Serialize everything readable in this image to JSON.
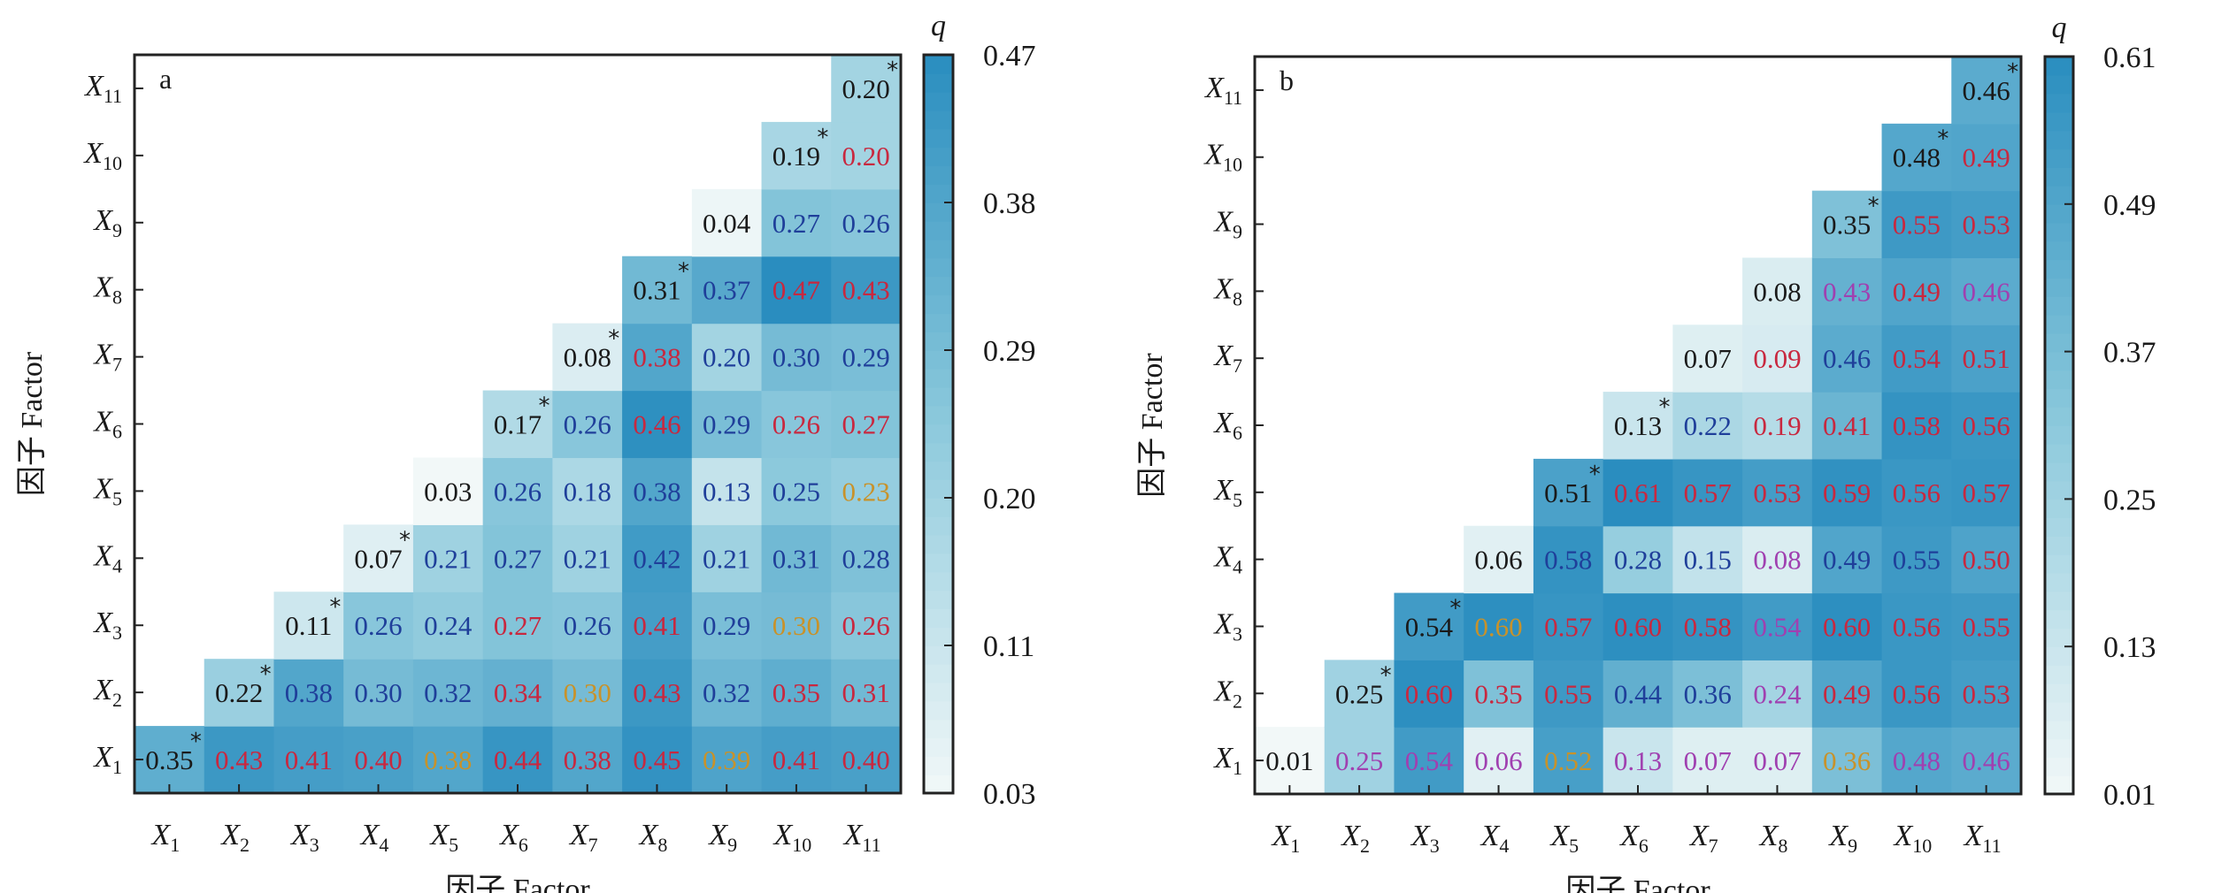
{
  "chart_data": [
    {
      "type": "heatmap",
      "panel_label": "a",
      "title": "",
      "xlabel": "因子 Factor",
      "ylabel": "因子 Factor",
      "colorbar_label": "q",
      "colorbar_ticks": [
        "0.47",
        "0.38",
        "0.29",
        "0.20",
        "0.11",
        "0.03"
      ],
      "colorbar_range": [
        0.03,
        0.47
      ],
      "x_categories": [
        "X1",
        "X2",
        "X3",
        "X4",
        "X5",
        "X6",
        "X7",
        "X8",
        "X9",
        "X10",
        "X11"
      ],
      "y_categories": [
        "X1",
        "X2",
        "X3",
        "X4",
        "X5",
        "X6",
        "X7",
        "X8",
        "X9",
        "X10",
        "X11"
      ],
      "layout": "upper-triangle: row Xi lists cells for columns Xi..X11",
      "rows": [
        {
          "row": "X1",
          "values": [
            0.35,
            0.43,
            0.41,
            0.4,
            0.38,
            0.44,
            0.38,
            0.45,
            0.39,
            0.41,
            0.4
          ],
          "labels": [
            "0.35",
            "0.43",
            "0.41",
            "0.40",
            "0.38",
            "0.44",
            "0.38",
            "0.45",
            "0.39",
            "0.41",
            "0.40"
          ],
          "marks": [
            "k",
            "r",
            "r",
            "r",
            "o",
            "r",
            "r",
            "r",
            "o",
            "r",
            "r"
          ],
          "star": true
        },
        {
          "row": "X2",
          "values": [
            0.22,
            0.38,
            0.3,
            0.32,
            0.34,
            0.3,
            0.43,
            0.32,
            0.35,
            0.31
          ],
          "labels": [
            "0.22",
            "0.38",
            "0.30",
            "0.32",
            "0.34",
            "0.30",
            "0.43",
            "0.32",
            "0.35",
            "0.31"
          ],
          "marks": [
            "k",
            "b",
            "b",
            "b",
            "r",
            "o",
            "r",
            "b",
            "r",
            "r"
          ],
          "star": true
        },
        {
          "row": "X3",
          "values": [
            0.11,
            0.26,
            0.24,
            0.27,
            0.26,
            0.41,
            0.29,
            0.3,
            0.26
          ],
          "labels": [
            "0.11",
            "0.26",
            "0.24",
            "0.27",
            "0.26",
            "0.41",
            "0.29",
            "0.30",
            "0.26"
          ],
          "marks": [
            "k",
            "b",
            "b",
            "r",
            "b",
            "r",
            "b",
            "o",
            "r"
          ],
          "star": true
        },
        {
          "row": "X4",
          "values": [
            0.07,
            0.21,
            0.27,
            0.21,
            0.42,
            0.21,
            0.31,
            0.28
          ],
          "labels": [
            "0.07",
            "0.21",
            "0.27",
            "0.21",
            "0.42",
            "0.21",
            "0.31",
            "0.28"
          ],
          "marks": [
            "k",
            "b",
            "b",
            "b",
            "b",
            "b",
            "b",
            "b"
          ],
          "star": true
        },
        {
          "row": "X5",
          "values": [
            0.03,
            0.26,
            0.18,
            0.38,
            0.13,
            0.25,
            0.23
          ],
          "labels": [
            "0.03",
            "0.26",
            "0.18",
            "0.38",
            "0.13",
            "0.25",
            "0.23"
          ],
          "marks": [
            "k",
            "b",
            "b",
            "b",
            "b",
            "b",
            "o"
          ],
          "star": false
        },
        {
          "row": "X6",
          "values": [
            0.17,
            0.26,
            0.46,
            0.29,
            0.26,
            0.27
          ],
          "labels": [
            "0.17",
            "0.26",
            "0.46",
            "0.29",
            "0.26",
            "0.27"
          ],
          "marks": [
            "k",
            "b",
            "r",
            "b",
            "r",
            "r"
          ],
          "star": true
        },
        {
          "row": "X7",
          "values": [
            0.08,
            0.38,
            0.2,
            0.3,
            0.29
          ],
          "labels": [
            "0.08",
            "0.38",
            "0.20",
            "0.30",
            "0.29"
          ],
          "marks": [
            "k",
            "r",
            "b",
            "b",
            "b"
          ],
          "star": true
        },
        {
          "row": "X8",
          "values": [
            0.31,
            0.37,
            0.47,
            0.43
          ],
          "labels": [
            "0.31",
            "0.37",
            "0.47",
            "0.43"
          ],
          "marks": [
            "k",
            "b",
            "r",
            "r"
          ],
          "star": true
        },
        {
          "row": "X9",
          "values": [
            0.04,
            0.27,
            0.26
          ],
          "labels": [
            "0.04",
            "0.27",
            "0.26"
          ],
          "marks": [
            "k",
            "b",
            "b"
          ],
          "star": false
        },
        {
          "row": "X10",
          "values": [
            0.19,
            0.2
          ],
          "labels": [
            "0.19",
            "0.20"
          ],
          "marks": [
            "k",
            "r"
          ],
          "star": true
        },
        {
          "row": "X11",
          "values": [
            0.2
          ],
          "labels": [
            "0.20"
          ],
          "marks": [
            "k"
          ],
          "star": true
        }
      ]
    },
    {
      "type": "heatmap",
      "panel_label": "b",
      "title": "",
      "xlabel": "因子 Factor",
      "ylabel": "因子 Factor",
      "colorbar_label": "q",
      "colorbar_ticks": [
        "0.61",
        "0.49",
        "0.37",
        "0.25",
        "0.13",
        "0.01"
      ],
      "colorbar_range": [
        0.01,
        0.61
      ],
      "x_categories": [
        "X1",
        "X2",
        "X3",
        "X4",
        "X5",
        "X6",
        "X7",
        "X8",
        "X9",
        "X10",
        "X11"
      ],
      "y_categories": [
        "X1",
        "X2",
        "X3",
        "X4",
        "X5",
        "X6",
        "X7",
        "X8",
        "X9",
        "X10",
        "X11"
      ],
      "layout": "upper-triangle: row Xi lists cells for columns Xi..X11",
      "rows": [
        {
          "row": "X1",
          "values": [
            0.01,
            0.25,
            0.54,
            0.06,
            0.52,
            0.13,
            0.07,
            0.07,
            0.36,
            0.48,
            0.46
          ],
          "labels": [
            "0.01",
            "0.25",
            "0.54",
            "0.06",
            "0.52",
            "0.13",
            "0.07",
            "0.07",
            "0.36",
            "0.48",
            "0.46"
          ],
          "marks": [
            "k",
            "p",
            "p",
            "p",
            "o",
            "p",
            "p",
            "p",
            "o",
            "p",
            "p"
          ],
          "star": false
        },
        {
          "row": "X2",
          "values": [
            0.25,
            0.6,
            0.35,
            0.55,
            0.44,
            0.36,
            0.24,
            0.49,
            0.56,
            0.53
          ],
          "labels": [
            "0.25",
            "0.60",
            "0.35",
            "0.55",
            "0.44",
            "0.36",
            "0.24",
            "0.49",
            "0.56",
            "0.53"
          ],
          "marks": [
            "k",
            "r",
            "r",
            "r",
            "b",
            "b",
            "p",
            "r",
            "r",
            "r"
          ],
          "star": true
        },
        {
          "row": "X3",
          "values": [
            0.54,
            0.6,
            0.57,
            0.6,
            0.58,
            0.54,
            0.6,
            0.56,
            0.55
          ],
          "labels": [
            "0.54",
            "0.60",
            "0.57",
            "0.60",
            "0.58",
            "0.54",
            "0.60",
            "0.56",
            "0.55"
          ],
          "marks": [
            "k",
            "o",
            "r",
            "r",
            "r",
            "p",
            "r",
            "r",
            "r"
          ],
          "star": true
        },
        {
          "row": "X4",
          "values": [
            0.06,
            0.58,
            0.28,
            0.15,
            0.08,
            0.49,
            0.55,
            0.5
          ],
          "labels": [
            "0.06",
            "0.58",
            "0.28",
            "0.15",
            "0.08",
            "0.49",
            "0.55",
            "0.50"
          ],
          "marks": [
            "k",
            "b",
            "b",
            "b",
            "p",
            "b",
            "b",
            "r"
          ],
          "star": false
        },
        {
          "row": "X5",
          "values": [
            0.51,
            0.61,
            0.57,
            0.53,
            0.59,
            0.56,
            0.57
          ],
          "labels": [
            "0.51",
            "0.61",
            "0.57",
            "0.53",
            "0.59",
            "0.56",
            "0.57"
          ],
          "marks": [
            "k",
            "r",
            "r",
            "r",
            "r",
            "r",
            "r"
          ],
          "star": true
        },
        {
          "row": "X6",
          "values": [
            0.13,
            0.22,
            0.19,
            0.41,
            0.58,
            0.56
          ],
          "labels": [
            "0.13",
            "0.22",
            "0.19",
            "0.41",
            "0.58",
            "0.56"
          ],
          "marks": [
            "k",
            "b",
            "r",
            "r",
            "r",
            "r"
          ],
          "star": true
        },
        {
          "row": "X7",
          "values": [
            0.07,
            0.09,
            0.46,
            0.54,
            0.51
          ],
          "labels": [
            "0.07",
            "0.09",
            "0.46",
            "0.54",
            "0.51"
          ],
          "marks": [
            "k",
            "r",
            "b",
            "r",
            "r"
          ],
          "star": false
        },
        {
          "row": "X8",
          "values": [
            0.08,
            0.43,
            0.49,
            0.46
          ],
          "labels": [
            "0.08",
            "0.43",
            "0.49",
            "0.46"
          ],
          "marks": [
            "k",
            "p",
            "r",
            "p"
          ],
          "star": false
        },
        {
          "row": "X9",
          "values": [
            0.35,
            0.55,
            0.53
          ],
          "labels": [
            "0.35",
            "0.55",
            "0.53"
          ],
          "marks": [
            "k",
            "r",
            "r"
          ],
          "star": true
        },
        {
          "row": "X10",
          "values": [
            0.48,
            0.49
          ],
          "labels": [
            "0.48",
            "0.49"
          ],
          "marks": [
            "k",
            "r"
          ],
          "star": true
        },
        {
          "row": "X11",
          "values": [
            0.46
          ],
          "labels": [
            "0.46"
          ],
          "marks": [
            "k"
          ],
          "star": true
        }
      ]
    }
  ],
  "text_colors": {
    "k": "#1a1a1a",
    "b": "#1f3f9a",
    "r": "#c8283f",
    "o": "#c8922a",
    "p": "#a040b0"
  },
  "colormap": {
    "low": "#f2f8f8",
    "mid": "#8cc9dc",
    "high": "#2a8dbf"
  },
  "significance_marker": "*"
}
